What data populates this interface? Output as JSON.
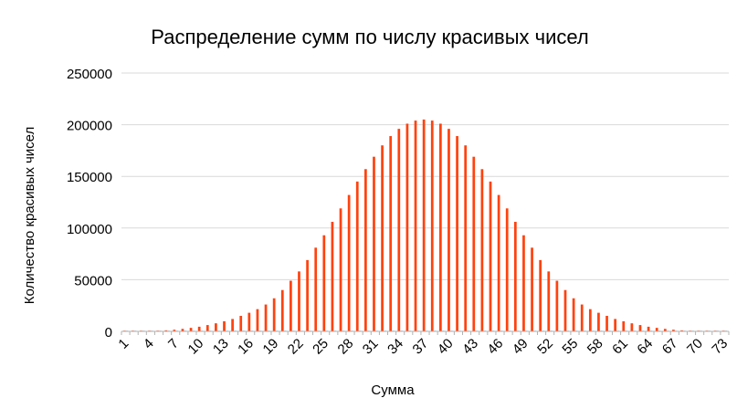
{
  "chart_data": {
    "type": "bar",
    "title": "Распределение сумм по числу красивых чисел",
    "xlabel": "Сумма",
    "ylabel": "Количество красивых чисел",
    "ylim": [
      0,
      250000
    ],
    "yticks": [
      "0",
      "50000",
      "100000",
      "150000",
      "200000",
      "250000"
    ],
    "xticks_shown": [
      "1",
      "4",
      "7",
      "10",
      "13",
      "16",
      "19",
      "22",
      "25",
      "28",
      "31",
      "34",
      "37",
      "40",
      "43",
      "46",
      "49",
      "52",
      "55",
      "58",
      "61",
      "64",
      "67",
      "70",
      "73"
    ],
    "grid": true,
    "legend": "none",
    "categories": [
      1,
      2,
      3,
      4,
      5,
      6,
      7,
      8,
      9,
      10,
      11,
      12,
      13,
      14,
      15,
      16,
      17,
      18,
      19,
      20,
      21,
      22,
      23,
      24,
      25,
      26,
      27,
      28,
      29,
      30,
      31,
      32,
      33,
      34,
      35,
      36,
      37,
      38,
      39,
      40,
      41,
      42,
      43,
      44,
      45,
      46,
      47,
      48,
      49,
      50,
      51,
      52,
      53,
      54,
      55,
      56,
      57,
      58,
      59,
      60,
      61,
      62,
      63,
      64,
      65,
      66,
      67,
      68,
      69,
      70,
      71,
      72,
      73
    ],
    "series": [
      {
        "color": "#ff420e",
        "values": [
          1,
          10,
          50,
          200,
          500,
          1000,
          1600,
          2400,
          3400,
          4500,
          6100,
          7800,
          9800,
          12000,
          15000,
          18000,
          21500,
          26000,
          32000,
          40000,
          49000,
          58000,
          69000,
          81000,
          93000,
          106000,
          119000,
          132000,
          145000,
          157000,
          169000,
          180000,
          189000,
          196000,
          201000,
          204000,
          205000,
          204000,
          201000,
          196000,
          189000,
          180000,
          169000,
          157000,
          145000,
          132000,
          119000,
          106000,
          93000,
          81000,
          69000,
          58000,
          49000,
          40000,
          32000,
          26000,
          21500,
          18000,
          15000,
          12000,
          9800,
          7800,
          6100,
          4500,
          3400,
          2400,
          1600,
          1000,
          500,
          200,
          50,
          10,
          1
        ]
      },
      {
        "color": "#004586",
        "values": [
          0,
          0,
          0,
          0,
          0,
          0,
          0,
          0,
          0,
          0,
          0,
          0,
          0,
          0,
          0,
          0,
          0,
          0,
          0,
          0,
          0,
          0,
          0,
          0,
          0,
          0,
          0,
          0,
          0,
          0,
          0,
          0,
          0,
          0,
          0,
          0,
          0,
          0,
          0,
          0,
          0,
          0,
          0,
          0,
          0,
          0,
          0,
          0,
          0,
          0,
          0,
          0,
          0,
          0,
          0,
          0,
          0,
          0,
          0,
          0,
          0,
          0,
          0,
          0,
          0,
          0,
          0,
          0,
          0,
          0,
          0,
          0,
          0
        ]
      }
    ]
  }
}
